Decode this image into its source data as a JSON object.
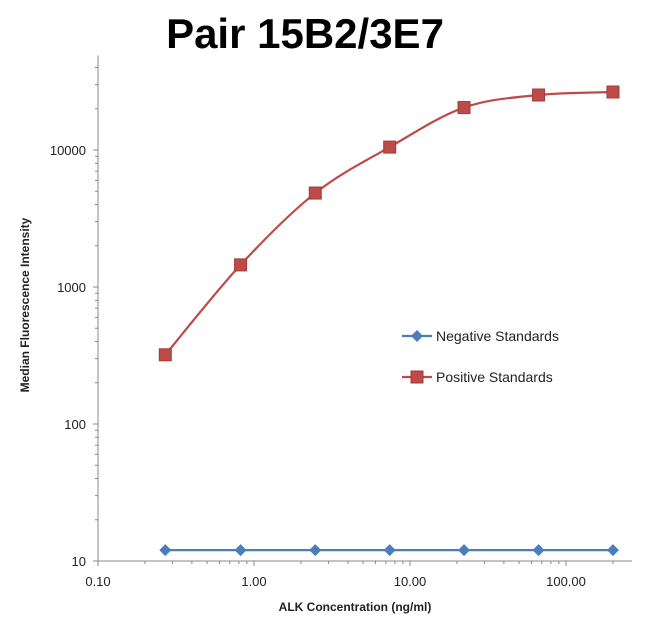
{
  "chart_data": {
    "type": "line",
    "title": "Pair 15B2/3E7",
    "xlabel": "ALK Concentration  (ng/ml)",
    "ylabel": "Median Fluorescence Intensity",
    "xscale": "log",
    "yscale": "log",
    "xlim": [
      0.1,
      265
    ],
    "ylim": [
      10,
      49000
    ],
    "x_tick_labels": [
      "0.10",
      "1.00",
      "10.00",
      "100.00"
    ],
    "x_tick_values": [
      0.1,
      1,
      10,
      100
    ],
    "y_tick_labels": [
      "10",
      "100",
      "1000",
      "10000"
    ],
    "y_tick_values": [
      10,
      100,
      1000,
      10000
    ],
    "x": [
      0.27,
      0.82,
      2.47,
      7.41,
      22.2,
      66.7,
      200
    ],
    "series": [
      {
        "name": "Negative Standards",
        "color": "#4a7ebb",
        "marker": "diamond",
        "values": [
          12,
          12,
          12,
          12,
          12,
          12,
          12
        ]
      },
      {
        "name": "Positive Standards",
        "color": "#be4b48",
        "marker": "square",
        "values": [
          320,
          1450,
          4850,
          10500,
          20400,
          25200,
          26500
        ]
      }
    ],
    "legend_position": "center-right",
    "grid": false
  }
}
